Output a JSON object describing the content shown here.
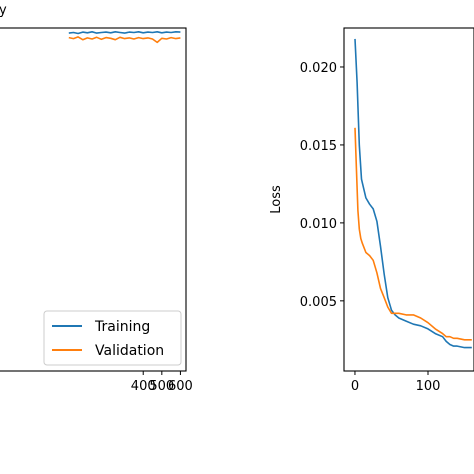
{
  "chart_data": [
    {
      "type": "line",
      "title": "",
      "title_fragment": "y",
      "xlabel": "",
      "ylabel": "",
      "xlim": [
        -370,
        630
      ],
      "ylim": [
        0.0,
        1.0
      ],
      "xticks": [
        400,
        500,
        600
      ],
      "xtick_labels": [
        "400",
        "500",
        "600"
      ],
      "yticks": [],
      "legend": {
        "placement": "lower-right",
        "entries": [
          "Training",
          "Validation"
        ]
      },
      "series": [
        {
          "name": "Training",
          "color": "#1f77b4",
          "x": [
            0,
            25,
            50,
            75,
            100,
            125,
            150,
            175,
            200,
            225,
            250,
            275,
            300,
            325,
            350,
            375,
            400,
            425,
            450,
            475,
            500,
            525,
            550,
            575,
            600
          ],
          "y": [
            0.985,
            0.987,
            0.984,
            0.988,
            0.986,
            0.989,
            0.985,
            0.987,
            0.988,
            0.986,
            0.989,
            0.987,
            0.985,
            0.988,
            0.987,
            0.989,
            0.986,
            0.988,
            0.987,
            0.989,
            0.986,
            0.988,
            0.987,
            0.989,
            0.988
          ]
        },
        {
          "name": "Validation",
          "color": "#ff7f0e",
          "x": [
            0,
            25,
            50,
            75,
            100,
            125,
            150,
            175,
            200,
            225,
            250,
            275,
            300,
            325,
            350,
            375,
            400,
            425,
            450,
            475,
            500,
            525,
            550,
            575,
            600
          ],
          "y": [
            0.972,
            0.969,
            0.974,
            0.966,
            0.971,
            0.968,
            0.973,
            0.967,
            0.972,
            0.97,
            0.966,
            0.973,
            0.969,
            0.971,
            0.968,
            0.972,
            0.969,
            0.971,
            0.968,
            0.958,
            0.97,
            0.968,
            0.972,
            0.969,
            0.971
          ]
        }
      ]
    },
    {
      "type": "line",
      "title": "",
      "xlabel": "",
      "ylabel": "Loss",
      "xlim": [
        -15,
        163
      ],
      "ylim": [
        0.0005,
        0.0225
      ],
      "xticks": [
        0,
        100
      ],
      "xtick_labels": [
        "0",
        "100"
      ],
      "yticks": [
        0.005,
        0.01,
        0.015,
        0.02
      ],
      "ytick_labels": [
        "0.005",
        "0.010",
        "0.015",
        "0.020"
      ],
      "legend": null,
      "series": [
        {
          "name": "Training",
          "color": "#1f77b4",
          "x": [
            0,
            3,
            6,
            9,
            12,
            15,
            20,
            25,
            30,
            35,
            40,
            45,
            50,
            55,
            60,
            70,
            80,
            90,
            100,
            110,
            120,
            125,
            130,
            135,
            140,
            150,
            160
          ],
          "y": [
            0.0218,
            0.019,
            0.015,
            0.0128,
            0.0122,
            0.0116,
            0.0112,
            0.0109,
            0.0101,
            0.0085,
            0.0067,
            0.0052,
            0.0044,
            0.0041,
            0.0039,
            0.0037,
            0.0035,
            0.0034,
            0.0032,
            0.0029,
            0.0027,
            0.0024,
            0.0022,
            0.0021,
            0.0021,
            0.002,
            0.002
          ]
        },
        {
          "name": "Validation",
          "color": "#ff7f0e",
          "x": [
            0,
            2,
            4,
            6,
            8,
            10,
            15,
            20,
            25,
            30,
            35,
            40,
            45,
            50,
            60,
            70,
            80,
            90,
            100,
            110,
            120,
            125,
            130,
            135,
            140,
            150,
            160
          ],
          "y": [
            0.0161,
            0.0135,
            0.0108,
            0.0096,
            0.009,
            0.0087,
            0.0081,
            0.0079,
            0.0076,
            0.0068,
            0.0058,
            0.0052,
            0.0046,
            0.0042,
            0.0042,
            0.0041,
            0.0041,
            0.0039,
            0.0036,
            0.0032,
            0.0029,
            0.0027,
            0.0027,
            0.0026,
            0.0026,
            0.0025,
            0.0025
          ]
        }
      ]
    }
  ]
}
